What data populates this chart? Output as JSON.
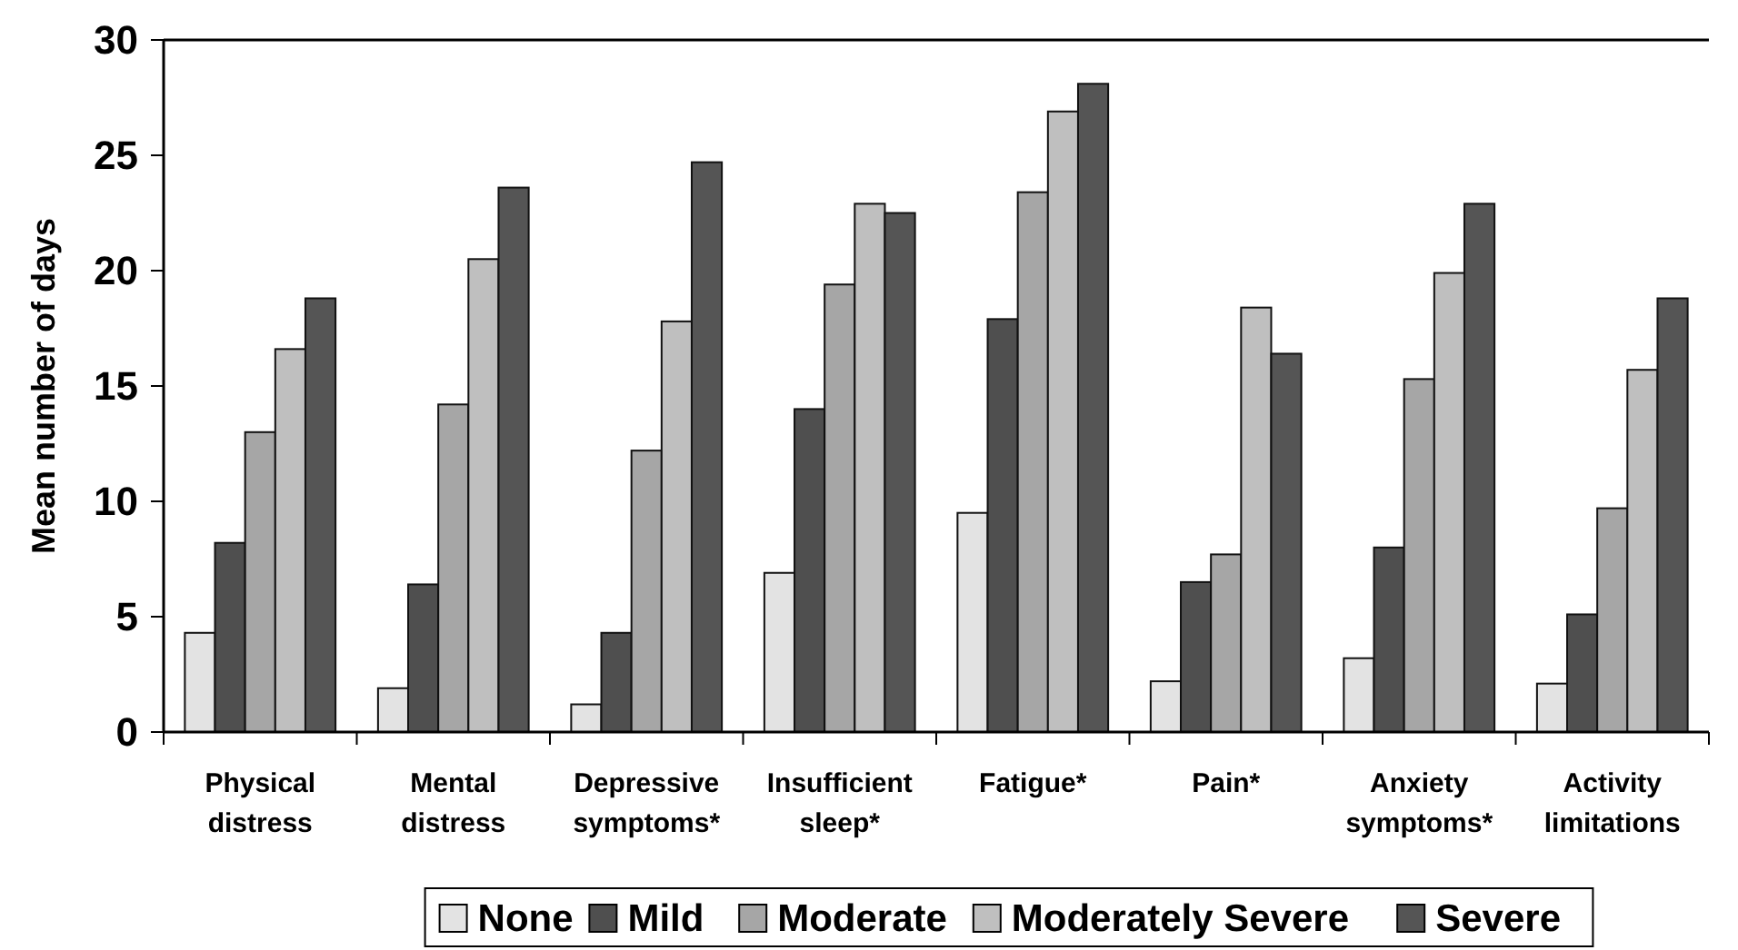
{
  "chart_data": {
    "type": "bar",
    "ylabel": "Mean number of days",
    "categories": [
      "Physical\ndistress",
      "Mental\ndistress",
      "Depressive\nsymptoms*",
      "Insufficient\nsleep*",
      "Fatigue*",
      "Pain*",
      "Anxiety\nsymptoms*",
      "Activity\nlimitations"
    ],
    "series": [
      {
        "name": "None",
        "color": "#e3e3e3",
        "values": [
          4.3,
          1.9,
          1.2,
          6.9,
          9.5,
          2.2,
          3.2,
          2.1
        ]
      },
      {
        "name": "Mild",
        "color": "#4f4f4f",
        "values": [
          8.2,
          6.4,
          4.3,
          14.0,
          17.9,
          6.5,
          8.0,
          5.1
        ]
      },
      {
        "name": "Moderate",
        "color": "#a6a6a6",
        "values": [
          13.0,
          14.2,
          12.2,
          19.4,
          23.4,
          7.7,
          15.3,
          9.7
        ]
      },
      {
        "name": "Moderately Severe",
        "color": "#bfbfbf",
        "values": [
          16.6,
          20.5,
          17.8,
          22.9,
          26.9,
          18.4,
          19.9,
          15.7
        ]
      },
      {
        "name": "Severe",
        "color": "#555555",
        "values": [
          18.8,
          23.6,
          24.7,
          22.5,
          28.1,
          16.4,
          22.9,
          18.8
        ]
      }
    ],
    "ylim": [
      0,
      30
    ],
    "yticks": [
      0,
      5,
      10,
      15,
      20,
      25,
      30
    ],
    "grid": false,
    "legend": "bottom"
  }
}
